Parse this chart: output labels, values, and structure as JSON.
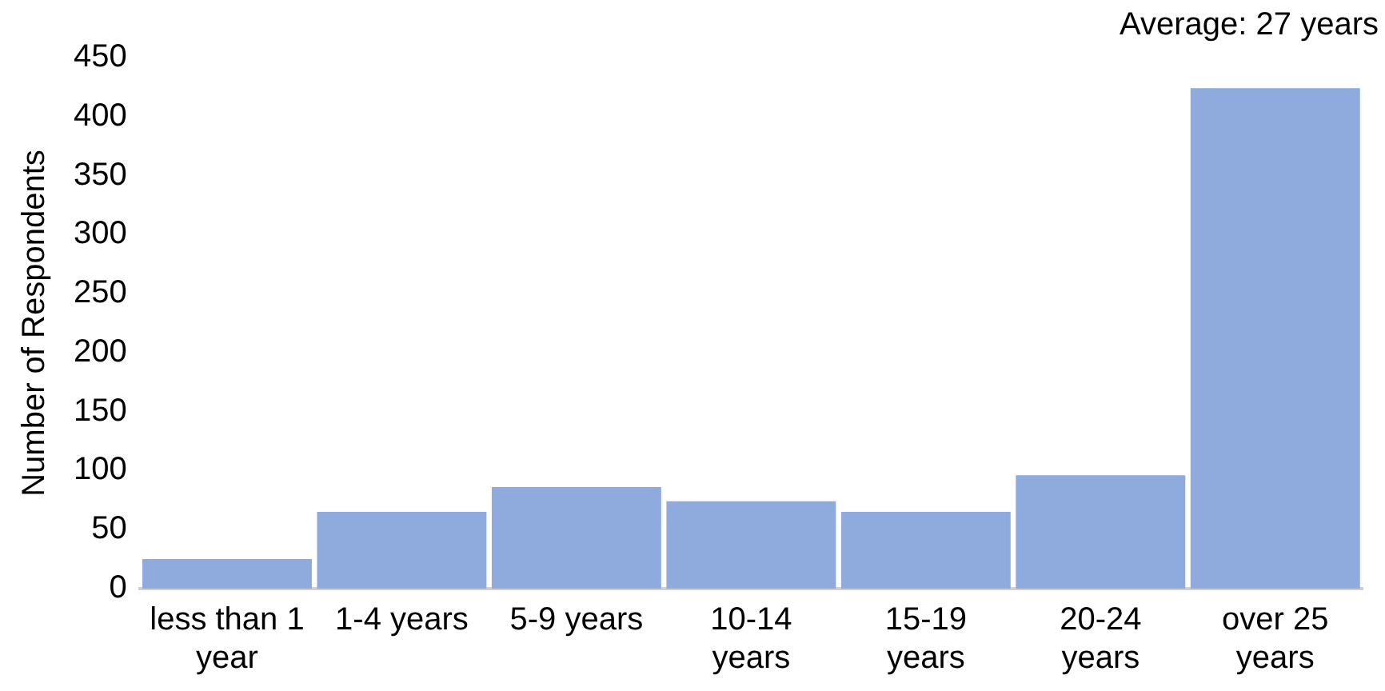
{
  "chart_data": {
    "type": "bar",
    "ylabel": "Number of Respondents",
    "categories": [
      "less than 1 year",
      "1-4 years",
      "5-9 years",
      "10-14 years",
      "15-19 years",
      "20-24 years",
      "over 25 years"
    ],
    "values": [
      25,
      65,
      86,
      74,
      65,
      96,
      424
    ],
    "color": "#8faadc",
    "ylim": [
      0,
      450
    ],
    "yticks": [
      0,
      50,
      100,
      150,
      200,
      250,
      300,
      350,
      400,
      450
    ],
    "grid": false,
    "annotations": [
      "Average: 27 years"
    ]
  }
}
